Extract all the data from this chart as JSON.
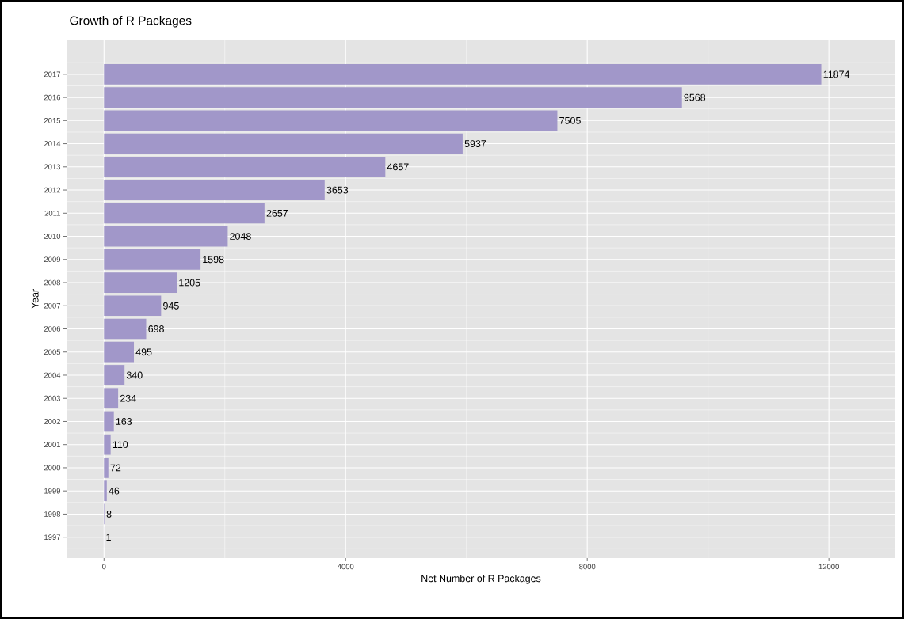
{
  "chart_data": {
    "type": "bar",
    "orientation": "horizontal",
    "title": "Growth of R Packages",
    "xlabel": "Net Number of R Packages",
    "ylabel": "Year",
    "categories": [
      "2017",
      "2016",
      "2015",
      "2014",
      "2013",
      "2012",
      "2011",
      "2010",
      "2009",
      "2008",
      "2007",
      "2006",
      "2005",
      "2004",
      "2003",
      "2002",
      "2001",
      "2000",
      "1999",
      "1998",
      "1997"
    ],
    "values": [
      11874,
      9568,
      7505,
      5937,
      4657,
      3653,
      2657,
      2048,
      1598,
      1205,
      945,
      698,
      495,
      340,
      234,
      163,
      110,
      72,
      46,
      8,
      1
    ],
    "color": "#a197c9",
    "data_labels": true,
    "grid": true,
    "xlim": [
      -620,
      13100
    ],
    "xticks": [
      0,
      4000,
      8000,
      12000
    ]
  }
}
